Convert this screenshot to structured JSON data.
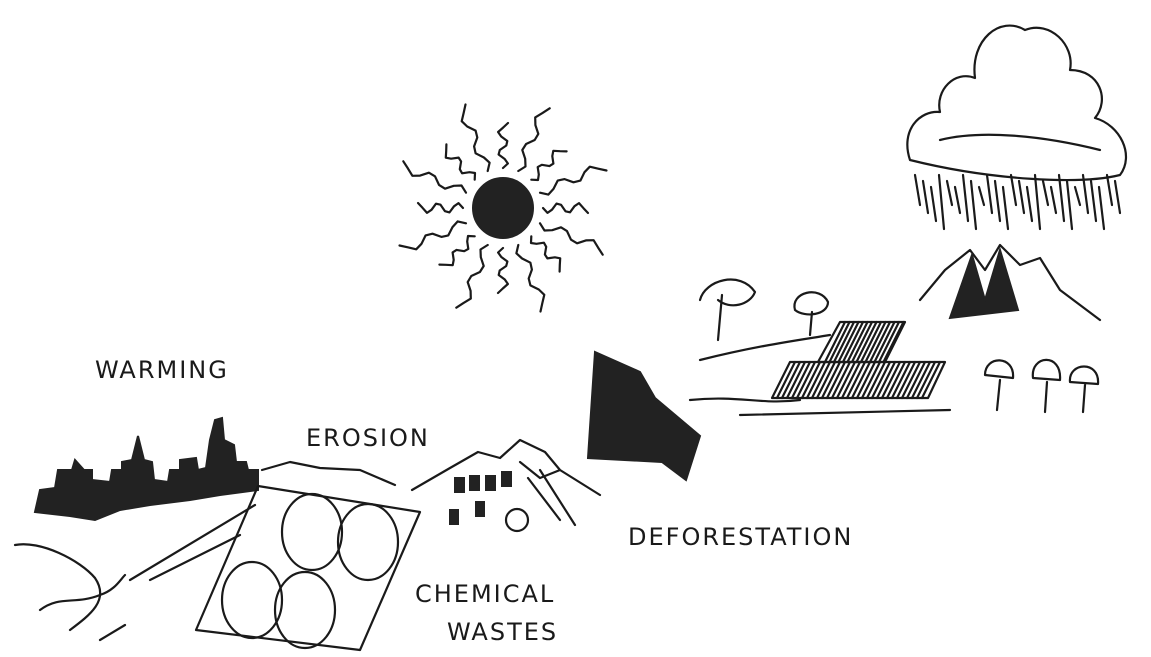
{
  "labels": {
    "warming": "WARMING",
    "erosion": "EROSION",
    "deforestation": "DEFORESTATION",
    "chemical_wastes": [
      "CHEMICAL",
      "WASTES"
    ]
  }
}
